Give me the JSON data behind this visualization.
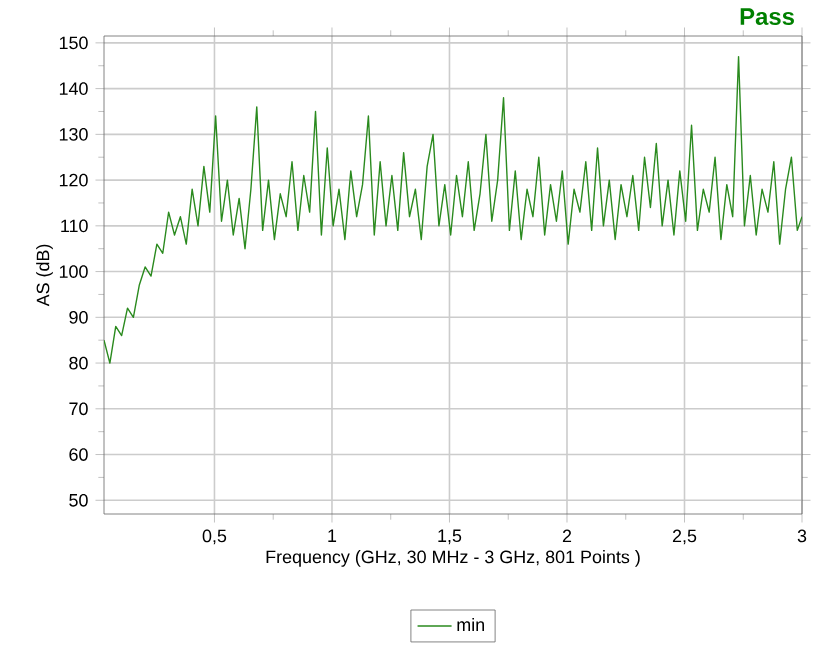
{
  "chart_data": {
    "type": "line",
    "title": "Pass",
    "xlabel": "Frequency (GHz, 30 MHz - 3 GHz, 801 Points )",
    "ylabel": "AS (dB)",
    "xlim": [
      0.03,
      3
    ],
    "ylim": [
      47,
      151.5
    ],
    "xticks": [
      {
        "value": 0.5,
        "label": "0,5"
      },
      1,
      {
        "value": 1.5,
        "label": "1,5"
      },
      2,
      {
        "value": 2.5,
        "label": "2,5"
      },
      3
    ],
    "yticks": [
      50,
      60,
      70,
      80,
      90,
      100,
      110,
      120,
      130,
      140,
      150
    ],
    "grid": true,
    "legend": "bottom",
    "marker": "none",
    "line_style": "solid",
    "series": [
      {
        "name": "min",
        "color": "#2a8a1e",
        "x": [
          0.03,
          0.055,
          0.08,
          0.105,
          0.13,
          0.155,
          0.18,
          0.205,
          0.23,
          0.255,
          0.28,
          0.305,
          0.33,
          0.355,
          0.38,
          0.405,
          0.43,
          0.455,
          0.48,
          0.505,
          0.53,
          0.555,
          0.58,
          0.605,
          0.63,
          0.655,
          0.68,
          0.705,
          0.73,
          0.755,
          0.78,
          0.805,
          0.83,
          0.855,
          0.88,
          0.905,
          0.93,
          0.955,
          0.98,
          1.005,
          1.03,
          1.055,
          1.08,
          1.105,
          1.13,
          1.155,
          1.18,
          1.205,
          1.23,
          1.255,
          1.28,
          1.305,
          1.33,
          1.355,
          1.38,
          1.405,
          1.43,
          1.455,
          1.48,
          1.505,
          1.53,
          1.555,
          1.58,
          1.605,
          1.63,
          1.655,
          1.68,
          1.705,
          1.73,
          1.755,
          1.78,
          1.805,
          1.83,
          1.855,
          1.88,
          1.905,
          1.93,
          1.955,
          1.98,
          2.005,
          2.03,
          2.055,
          2.08,
          2.105,
          2.13,
          2.155,
          2.18,
          2.205,
          2.23,
          2.255,
          2.28,
          2.305,
          2.33,
          2.355,
          2.38,
          2.405,
          2.43,
          2.455,
          2.48,
          2.505,
          2.53,
          2.555,
          2.58,
          2.605,
          2.63,
          2.655,
          2.68,
          2.705,
          2.73,
          2.755,
          2.78,
          2.805,
          2.83,
          2.855,
          2.88,
          2.905,
          2.93,
          2.955,
          2.98,
          3.0
        ],
        "values": [
          85,
          80,
          88,
          86,
          92,
          90,
          97,
          101,
          99,
          106,
          104,
          113,
          108,
          112,
          106,
          118,
          110,
          123,
          113,
          134,
          111,
          120,
          108,
          116,
          105,
          118,
          136,
          109,
          120,
          107,
          117,
          112,
          124,
          109,
          121,
          113,
          135,
          108,
          127,
          110,
          118,
          107,
          122,
          112,
          119,
          134,
          108,
          124,
          110,
          121,
          109,
          126,
          112,
          118,
          107,
          123,
          130,
          110,
          119,
          108,
          121,
          112,
          124,
          109,
          117,
          130,
          111,
          120,
          138,
          109,
          122,
          107,
          118,
          112,
          125,
          108,
          119,
          111,
          122,
          106,
          118,
          113,
          124,
          109,
          127,
          110,
          120,
          107,
          119,
          112,
          121,
          109,
          125,
          114,
          128,
          110,
          120,
          108,
          122,
          111,
          132,
          109,
          118,
          113,
          125,
          107,
          119,
          112,
          147,
          110,
          121,
          108,
          118,
          113,
          124,
          106,
          118,
          125,
          109,
          112
        ]
      }
    ]
  }
}
